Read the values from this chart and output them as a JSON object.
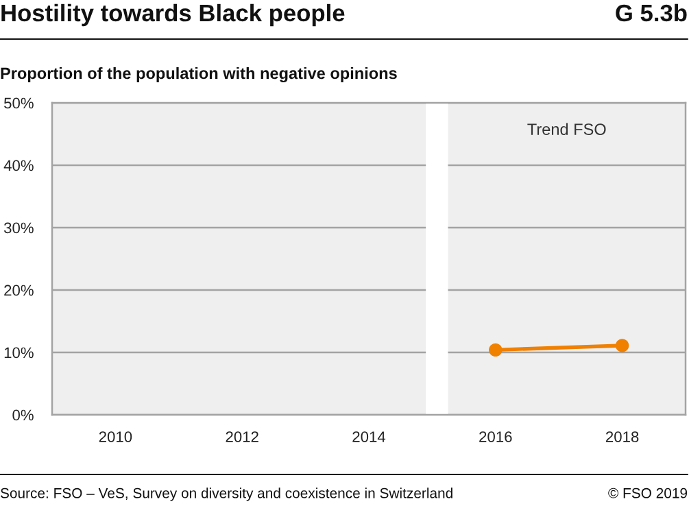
{
  "chart_data": {
    "type": "line",
    "title": "Hostility towards Black people",
    "subtitle": "Proportion of the population with negative opinions",
    "annotations": [
      "G 5.3b",
      "Source: FSO – VeS, Survey on diversity and coexistence in Switzerland",
      "© FSO 2019"
    ],
    "x": [
      2016,
      2018
    ],
    "series": [
      {
        "color": "#f08000",
        "values": [
          10.4,
          11.1
        ]
      }
    ],
    "xlim": [
      2009,
      2019
    ],
    "xticks": [
      2010,
      2012,
      2014,
      2016,
      2018
    ],
    "ylim": [
      0,
      50
    ],
    "yticks": [
      {
        "value": 0,
        "label": "0%"
      },
      {
        "value": 10,
        "label": "10%"
      },
      {
        "value": 20,
        "label": "20%"
      },
      {
        "value": 30,
        "label": "30%"
      },
      {
        "value": 40,
        "label": "40%"
      },
      {
        "value": 50,
        "label": "50%"
      }
    ],
    "bands": [
      {
        "axis": "x",
        "from": 2009,
        "to": 2014.9,
        "color": "#efefef"
      },
      {
        "axis": "x",
        "from": 2015.25,
        "to": 2019,
        "color": "#efefef",
        "label": "Trend FSO"
      }
    ],
    "grid": "y",
    "marker": "circle",
    "line_style": "solid"
  }
}
